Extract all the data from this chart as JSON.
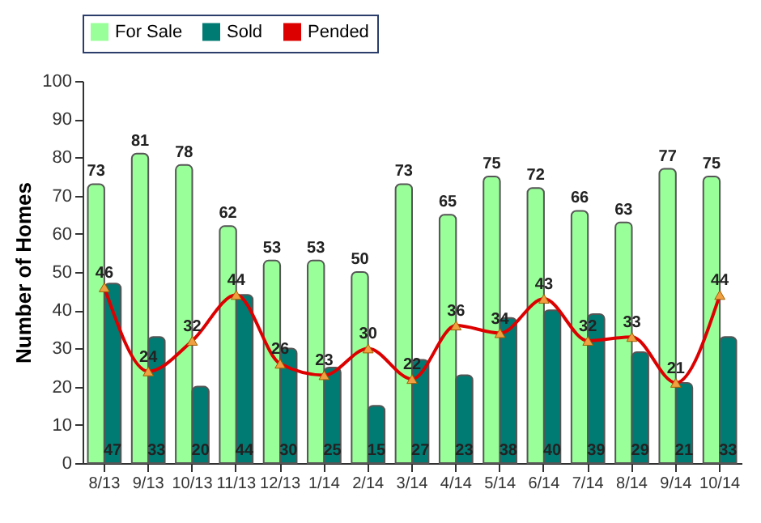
{
  "chart_data": {
    "type": "bar",
    "ylabel": "Number of Homes",
    "categories": [
      "8/13",
      "9/13",
      "10/13",
      "11/13",
      "12/13",
      "1/14",
      "2/14",
      "3/14",
      "4/14",
      "5/14",
      "6/14",
      "7/14",
      "8/14",
      "9/14",
      "10/14"
    ],
    "series": [
      {
        "name": "For Sale",
        "color": "#99ff99",
        "values": [
          73,
          81,
          78,
          62,
          53,
          53,
          50,
          73,
          65,
          75,
          72,
          66,
          63,
          77,
          75
        ]
      },
      {
        "name": "Sold",
        "color": "#007b73",
        "values": [
          47,
          33,
          20,
          44,
          30,
          25,
          15,
          27,
          23,
          38,
          40,
          39,
          29,
          21,
          33
        ]
      },
      {
        "name": "Pended",
        "type": "line",
        "color": "#dd0000",
        "values": [
          46,
          24,
          32,
          44,
          26,
          23,
          30,
          22,
          36,
          34,
          43,
          32,
          33,
          21,
          44
        ]
      }
    ],
    "ylim": [
      0,
      100
    ],
    "yticks": [
      0,
      10,
      20,
      30,
      40,
      50,
      60,
      70,
      80,
      90,
      100
    ],
    "data_labels": true,
    "legend": "top",
    "grid": false,
    "marker": "triangle",
    "line_style": "solid"
  }
}
